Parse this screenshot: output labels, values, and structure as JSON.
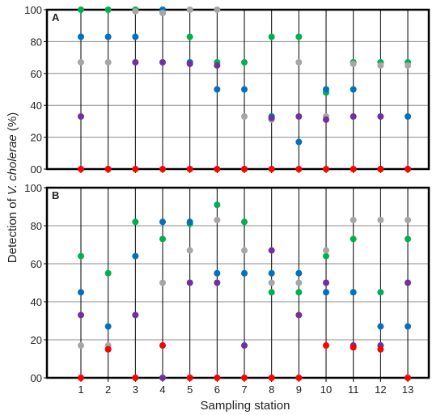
{
  "figure": {
    "ylabel_prefix": "Detection of ",
    "ylabel_italic": "V. cholerae",
    "ylabel_suffix": " (%)",
    "xlabel": "Sampling station"
  },
  "chart_data": [
    {
      "type": "scatter",
      "panel_label": "A",
      "x": [
        1,
        2,
        3,
        4,
        5,
        6,
        7,
        8,
        9,
        10,
        11,
        12,
        13
      ],
      "x_tick_labels": [],
      "ylim": [
        0,
        100
      ],
      "y_ticks": [
        0,
        20,
        40,
        60,
        80,
        100
      ],
      "y_tick_labels": [
        "00",
        "20",
        "40",
        "60",
        "80",
        "100"
      ],
      "grid": true,
      "series": [
        {
          "color": "#00b050",
          "values": [
            100,
            100,
            100,
            98,
            83,
            67,
            67,
            83,
            83,
            48,
            67,
            67,
            67
          ]
        },
        {
          "color": "#0070c0",
          "values": [
            83,
            83,
            83,
            100,
            67,
            50,
            50,
            33,
            17,
            50,
            50,
            0,
            33
          ]
        },
        {
          "color": "#a6a6a6",
          "values": [
            67,
            67,
            99,
            98,
            100,
            100,
            33,
            31,
            67,
            33,
            66,
            65,
            65
          ]
        },
        {
          "color": "#7030a0",
          "values": [
            33,
            0,
            67,
            67,
            66,
            65,
            0,
            32,
            33,
            31,
            33,
            33,
            0
          ]
        },
        {
          "color": "#ff0000",
          "values": [
            0,
            0,
            0,
            0,
            0,
            0,
            0,
            0,
            0,
            0,
            0,
            0,
            0
          ]
        }
      ]
    },
    {
      "type": "scatter",
      "panel_label": "B",
      "x": [
        1,
        2,
        3,
        4,
        5,
        6,
        7,
        8,
        9,
        10,
        11,
        12,
        13
      ],
      "x_tick_labels": [
        "1",
        "2",
        "3",
        "4",
        "5",
        "6",
        "7",
        "8",
        "9",
        "10",
        "11",
        "12",
        "13"
      ],
      "ylim": [
        0,
        100
      ],
      "y_ticks": [
        0,
        20,
        40,
        60,
        80,
        100
      ],
      "y_tick_labels": [
        "00",
        "20",
        "40",
        "60",
        "80",
        "100"
      ],
      "grid": true,
      "series": [
        {
          "color": "#00b050",
          "values": [
            64,
            55,
            82,
            73,
            81,
            91,
            82,
            45,
            45,
            64,
            73,
            45,
            73
          ]
        },
        {
          "color": "#0070c0",
          "values": [
            45,
            27,
            64,
            82,
            82,
            55,
            55,
            55,
            55,
            45,
            45,
            27,
            27
          ]
        },
        {
          "color": "#a6a6a6",
          "values": [
            17,
            17,
            0,
            50,
            67,
            83,
            67,
            50,
            50,
            67,
            83,
            83,
            83
          ]
        },
        {
          "color": "#7030a0",
          "values": [
            33,
            15,
            33,
            0,
            50,
            50,
            17,
            67,
            33,
            50,
            17,
            17,
            50
          ]
        },
        {
          "color": "#ff0000",
          "values": [
            0,
            15,
            0,
            17,
            0,
            0,
            0,
            0,
            0,
            17,
            16,
            15,
            0
          ]
        }
      ]
    }
  ]
}
